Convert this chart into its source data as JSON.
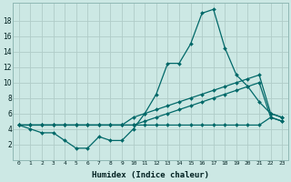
{
  "xlabel": "Humidex (Indice chaleur)",
  "x_values": [
    0,
    1,
    2,
    3,
    4,
    5,
    6,
    7,
    8,
    9,
    10,
    11,
    12,
    13,
    14,
    15,
    16,
    17,
    18,
    19,
    20,
    21,
    22,
    23
  ],
  "line_peak": [
    4.5,
    4.0,
    3.5,
    3.5,
    2.5,
    1.5,
    1.5,
    3.0,
    2.5,
    2.5,
    4.0,
    6.0,
    8.5,
    12.5,
    12.5,
    15.0,
    19.0,
    19.5,
    14.5,
    11.0,
    9.5,
    7.5,
    6.0,
    5.5
  ],
  "line_diag1": [
    4.5,
    4.5,
    4.5,
    4.5,
    4.5,
    4.5,
    4.5,
    4.5,
    4.5,
    4.5,
    5.5,
    6.0,
    6.5,
    7.0,
    7.5,
    8.0,
    8.5,
    9.0,
    9.5,
    10.0,
    10.5,
    11.0,
    6.0,
    5.5
  ],
  "line_diag2": [
    4.5,
    4.5,
    4.5,
    4.5,
    4.5,
    4.5,
    4.5,
    4.5,
    4.5,
    4.5,
    4.5,
    5.0,
    5.5,
    6.0,
    6.5,
    7.0,
    7.5,
    8.0,
    8.5,
    9.0,
    9.5,
    10.0,
    5.5,
    5.0
  ],
  "line_flat": [
    4.5,
    4.5,
    4.5,
    4.5,
    4.5,
    4.5,
    4.5,
    4.5,
    4.5,
    4.5,
    4.5,
    4.5,
    4.5,
    4.5,
    4.5,
    4.5,
    4.5,
    4.5,
    4.5,
    4.5,
    4.5,
    4.5,
    5.5,
    5.0
  ],
  "bg_color": "#cce8e4",
  "grid_color": "#b0ccc8",
  "line_color": "#006868",
  "ylim": [
    0,
    20
  ],
  "xlim_min": -0.5,
  "xlim_max": 23.5,
  "yticks": [
    2,
    4,
    6,
    8,
    10,
    12,
    14,
    16,
    18
  ],
  "xticks": [
    0,
    1,
    2,
    3,
    4,
    5,
    6,
    7,
    8,
    9,
    10,
    11,
    12,
    13,
    14,
    15,
    16,
    17,
    18,
    19,
    20,
    21,
    22,
    23
  ],
  "xlabel_fontsize": 6.5,
  "tick_fontsize_x": 4.5,
  "tick_fontsize_y": 5.5
}
